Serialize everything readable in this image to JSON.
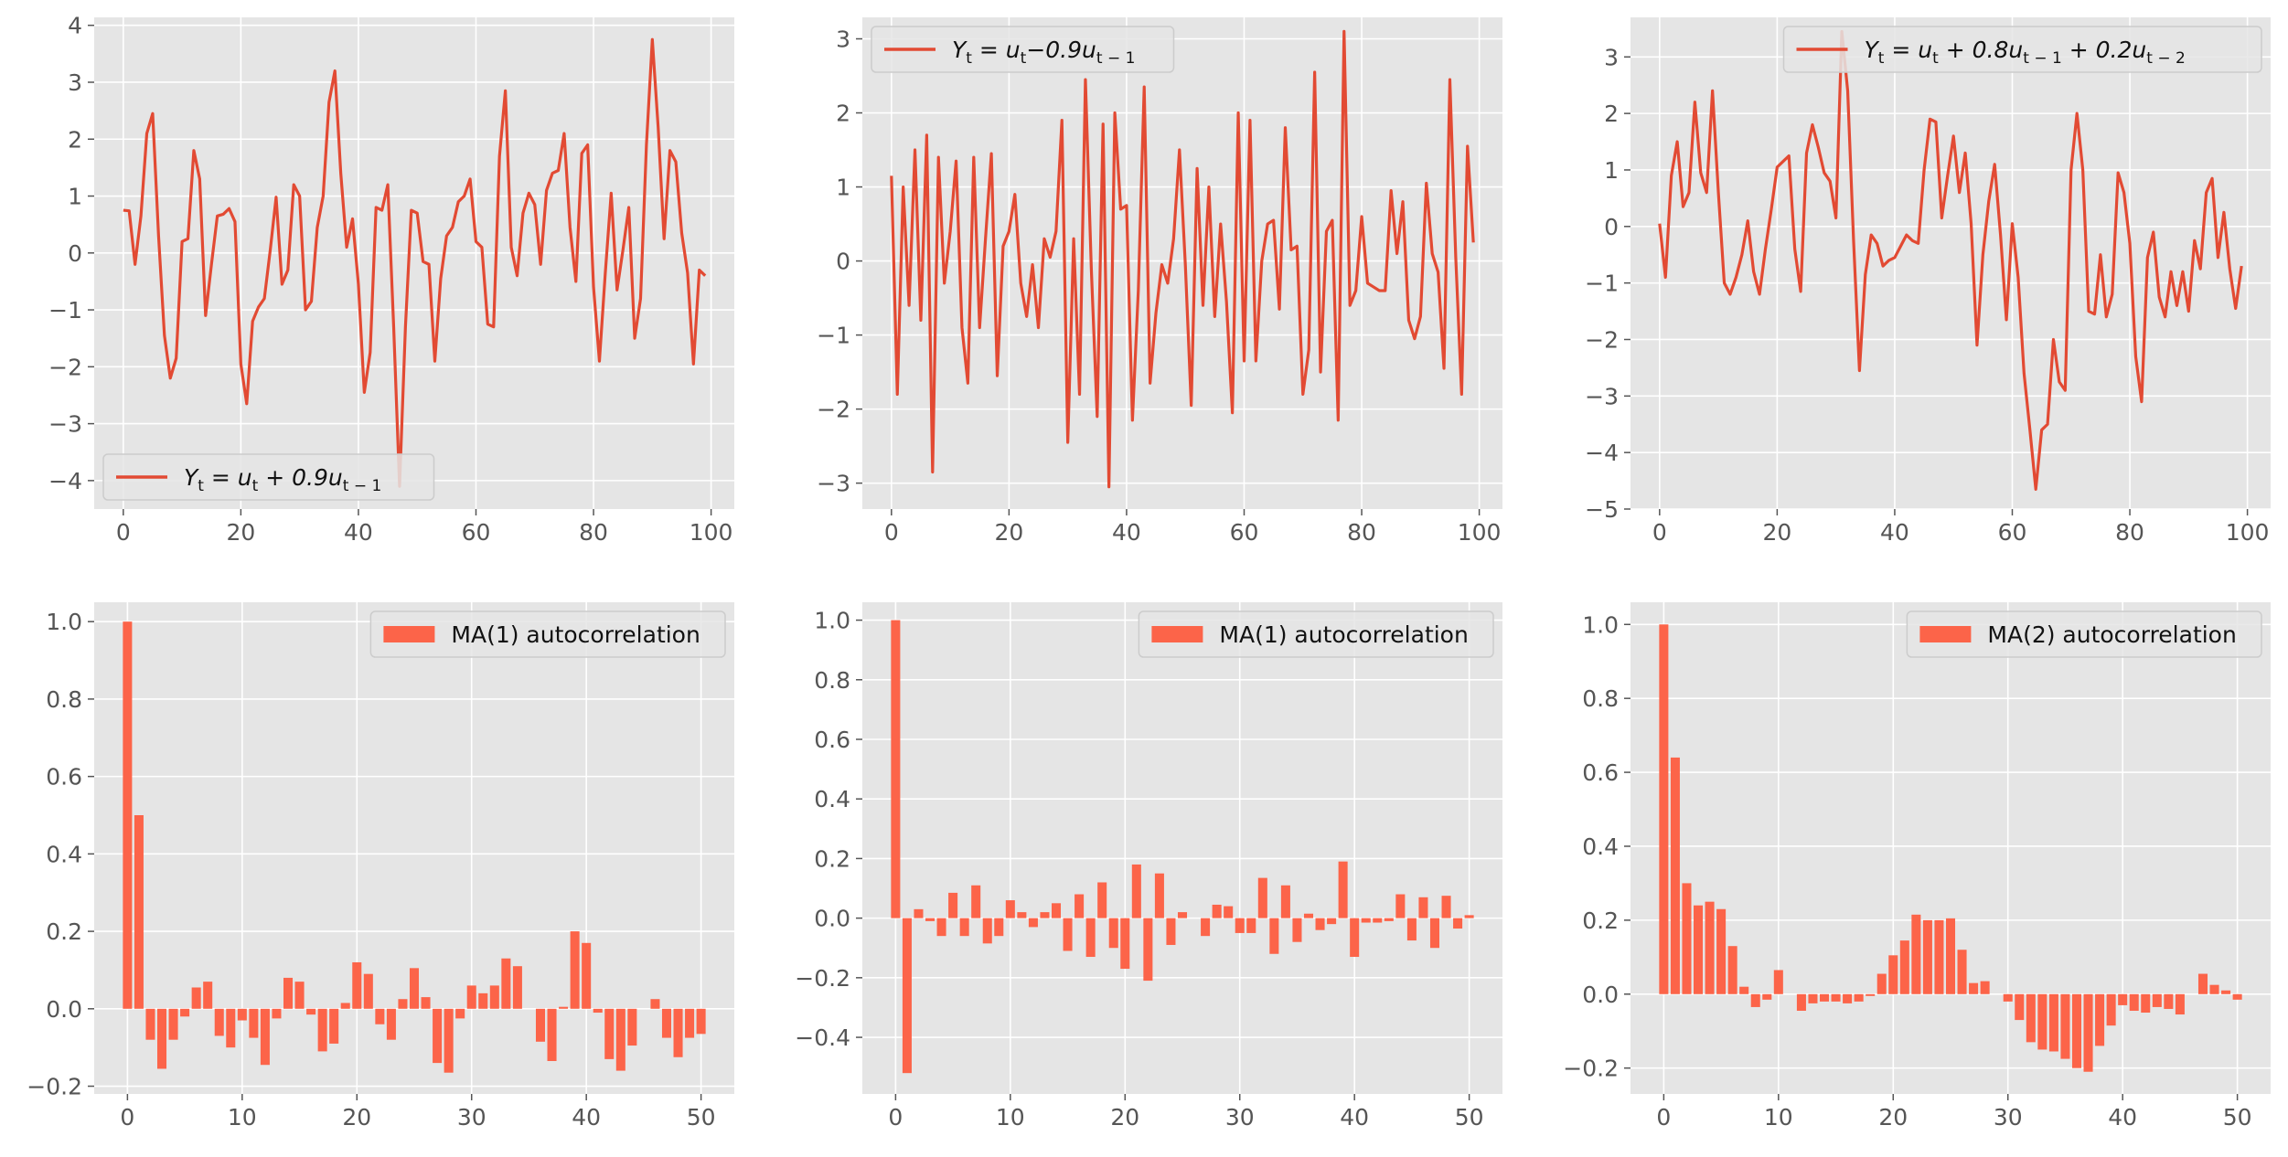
{
  "figure": {
    "background": "#ffffff"
  },
  "style": {
    "axes_bg": "#e5e5e5",
    "grid": "#ffffff",
    "line_color": "#e24a33",
    "bar_color": "#fc6449",
    "tick_color": "#555555"
  },
  "chart_data": [
    {
      "id": "ma1_pos_series",
      "type": "line",
      "legend": [
        {
          "kind": "math",
          "parts": [
            [
              "Y",
              ""
            ],
            [
              "t",
              "sub"
            ],
            [
              " = u",
              ""
            ],
            [
              "t",
              "sub"
            ],
            [
              " + 0.9u",
              ""
            ],
            [
              "t − 1",
              "sub"
            ]
          ]
        }
      ],
      "legend_loc": "lower-left",
      "grid": true,
      "xlim": [
        -4.95,
        103.95
      ],
      "ylim": [
        -4.5,
        4.14
      ],
      "xticks": [
        0,
        20,
        40,
        60,
        80,
        100
      ],
      "xtick_labels": [
        "0",
        "20",
        "40",
        "60",
        "80",
        "100"
      ],
      "yticks": [
        -4,
        -3,
        -2,
        -1,
        0,
        1,
        2,
        3,
        4
      ],
      "ytick_labels": [
        "−4",
        "−3",
        "−2",
        "−1",
        "0",
        "1",
        "2",
        "3",
        "4"
      ],
      "series": [
        {
          "y": [
            0.75,
            0.74,
            -0.2,
            0.65,
            2.1,
            2.45,
            0.3,
            -1.45,
            -2.2,
            -1.85,
            0.2,
            0.25,
            1.8,
            1.3,
            -1.1,
            -0.2,
            0.65,
            0.68,
            0.78,
            0.55,
            -1.95,
            -2.65,
            -1.2,
            -0.95,
            -0.8,
            0.05,
            0.98,
            -0.55,
            -0.3,
            1.2,
            1.0,
            -1.0,
            -0.85,
            0.45,
            1.0,
            2.65,
            3.2,
            1.4,
            0.1,
            0.6,
            -0.55,
            -2.45,
            -1.75,
            0.8,
            0.75,
            1.2,
            -1.3,
            -4.1,
            -1.3,
            0.75,
            0.7,
            -0.15,
            -0.2,
            -1.9,
            -0.45,
            0.3,
            0.45,
            0.9,
            1.0,
            1.3,
            0.2,
            0.1,
            -1.25,
            -1.3,
            1.7,
            2.85,
            0.1,
            -0.4,
            0.7,
            1.05,
            0.85,
            -0.2,
            1.1,
            1.4,
            1.45,
            2.1,
            0.45,
            -0.5,
            1.75,
            1.9,
            -0.6,
            -1.9,
            -0.35,
            1.05,
            -0.65,
            0.05,
            0.8,
            -1.5,
            -0.8,
            1.9,
            3.75,
            2.2,
            0.25,
            1.8,
            1.6,
            0.35,
            -0.35,
            -1.95,
            -0.3,
            -0.4
          ]
        }
      ]
    },
    {
      "id": "ma1_neg_series",
      "type": "line",
      "legend": [
        {
          "kind": "math",
          "parts": [
            [
              "Y",
              ""
            ],
            [
              "t",
              "sub"
            ],
            [
              " = u",
              ""
            ],
            [
              "t",
              "sub"
            ],
            [
              "−0.9u",
              ""
            ],
            [
              "t − 1",
              "sub"
            ]
          ]
        }
      ],
      "legend_loc": "upper-left",
      "grid": true,
      "xlim": [
        -4.95,
        103.95
      ],
      "ylim": [
        -3.35,
        3.29
      ],
      "xticks": [
        0,
        20,
        40,
        60,
        80,
        100
      ],
      "xtick_labels": [
        "0",
        "20",
        "40",
        "60",
        "80",
        "100"
      ],
      "yticks": [
        -3,
        -2,
        -1,
        0,
        1,
        2,
        3
      ],
      "ytick_labels": [
        "−3",
        "−2",
        "−1",
        "0",
        "1",
        "2",
        "3"
      ],
      "series": [
        {
          "y": [
            1.15,
            -1.8,
            1.0,
            -0.6,
            1.5,
            -0.8,
            1.7,
            -2.85,
            1.4,
            -0.3,
            0.4,
            1.35,
            -0.9,
            -1.65,
            1.4,
            -0.9,
            0.3,
            1.45,
            -1.55,
            0.2,
            0.4,
            0.9,
            -0.3,
            -0.75,
            -0.05,
            -0.9,
            0.3,
            0.05,
            0.4,
            1.9,
            -2.45,
            0.3,
            -1.8,
            2.45,
            -0.1,
            -2.1,
            1.85,
            -3.05,
            2.0,
            0.7,
            0.75,
            -2.15,
            -0.4,
            2.35,
            -1.65,
            -0.7,
            -0.05,
            -0.3,
            0.3,
            1.5,
            -0.05,
            -1.95,
            1.25,
            -0.6,
            1.0,
            -0.75,
            0.5,
            -0.55,
            -2.05,
            2.0,
            -1.35,
            1.9,
            -1.35,
            0.0,
            0.5,
            0.55,
            -0.65,
            1.8,
            0.15,
            0.2,
            -1.8,
            -1.2,
            2.55,
            -1.5,
            0.4,
            0.55,
            -2.15,
            3.1,
            -0.6,
            -0.4,
            0.6,
            -0.3,
            -0.35,
            -0.4,
            -0.4,
            0.95,
            0.1,
            0.8,
            -0.8,
            -1.05,
            -0.75,
            1.05,
            0.1,
            -0.15,
            -1.45,
            2.45,
            0.05,
            -1.8,
            1.55,
            0.25
          ]
        }
      ]
    },
    {
      "id": "ma2_series",
      "type": "line",
      "legend": [
        {
          "kind": "math",
          "parts": [
            [
              "Y",
              ""
            ],
            [
              "t",
              "sub"
            ],
            [
              " = u",
              ""
            ],
            [
              "t",
              "sub"
            ],
            [
              " + 0.8u",
              ""
            ],
            [
              "t − 1",
              "sub"
            ],
            [
              " + 0.2u",
              ""
            ],
            [
              "t − 2",
              "sub"
            ]
          ]
        }
      ],
      "legend_loc": "upper-right",
      "grid": true,
      "xlim": [
        -4.95,
        103.95
      ],
      "ylim": [
        -5.0,
        3.7
      ],
      "xticks": [
        0,
        20,
        40,
        60,
        80,
        100
      ],
      "xtick_labels": [
        "0",
        "20",
        "40",
        "60",
        "80",
        "100"
      ],
      "yticks": [
        -5,
        -4,
        -3,
        -2,
        -1,
        0,
        1,
        2,
        3
      ],
      "ytick_labels": [
        "−5",
        "−4",
        "−3",
        "−2",
        "−1",
        "0",
        "1",
        "2",
        "3"
      ],
      "series": [
        {
          "y": [
            0.05,
            -0.9,
            0.9,
            1.5,
            0.35,
            0.6,
            2.2,
            0.95,
            0.6,
            2.4,
            0.6,
            -1.0,
            -1.2,
            -0.9,
            -0.5,
            0.1,
            -0.8,
            -1.2,
            -0.4,
            0.3,
            1.05,
            1.15,
            1.25,
            -0.4,
            -1.15,
            1.3,
            1.8,
            1.4,
            0.95,
            0.8,
            0.15,
            3.45,
            2.4,
            -0.25,
            -2.55,
            -0.85,
            -0.15,
            -0.3,
            -0.7,
            -0.6,
            -0.55,
            -0.35,
            -0.15,
            -0.25,
            -0.3,
            1.0,
            1.9,
            1.85,
            0.15,
            0.9,
            1.6,
            0.6,
            1.3,
            0.05,
            -2.1,
            -0.5,
            0.45,
            1.1,
            -0.15,
            -1.65,
            0.05,
            -0.9,
            -2.6,
            -3.6,
            -4.65,
            -3.6,
            -3.5,
            -2.0,
            -2.75,
            -2.9,
            1.0,
            2.0,
            1.0,
            -1.5,
            -1.55,
            -0.5,
            -1.6,
            -1.2,
            0.95,
            0.6,
            -0.3,
            -2.3,
            -3.1,
            -0.55,
            -0.1,
            -1.25,
            -1.6,
            -0.8,
            -1.4,
            -0.8,
            -1.5,
            -0.25,
            -0.75,
            0.6,
            0.85,
            -0.55,
            0.25,
            -0.75,
            -1.45,
            -0.7
          ]
        }
      ]
    },
    {
      "id": "ma1_pos_acf",
      "type": "bar",
      "legend": [
        {
          "kind": "text",
          "text": "MA(1) autocorrelation"
        }
      ],
      "legend_loc": "upper-right",
      "grid": true,
      "xlim": [
        -2.9,
        52.9
      ],
      "ylim": [
        -0.22,
        1.05
      ],
      "xticks": [
        0,
        10,
        20,
        30,
        40,
        50
      ],
      "xtick_labels": [
        "0",
        "10",
        "20",
        "30",
        "40",
        "50"
      ],
      "yticks": [
        -0.2,
        0.0,
        0.2,
        0.4,
        0.6,
        0.8,
        1.0
      ],
      "ytick_labels": [
        "−0.2",
        "0.0",
        "0.2",
        "0.4",
        "0.6",
        "0.8",
        "1.0"
      ],
      "values": [
        1.0,
        0.5,
        -0.08,
        -0.155,
        -0.08,
        -0.02,
        0.055,
        0.07,
        -0.07,
        -0.1,
        -0.03,
        -0.075,
        -0.145,
        -0.025,
        0.08,
        0.07,
        -0.015,
        -0.11,
        -0.09,
        0.015,
        0.12,
        0.09,
        -0.04,
        -0.08,
        0.025,
        0.105,
        0.03,
        -0.14,
        -0.165,
        -0.025,
        0.06,
        0.04,
        0.06,
        0.13,
        0.11,
        0.0,
        -0.085,
        -0.135,
        0.005,
        0.2,
        0.17,
        -0.01,
        -0.13,
        -0.16,
        -0.095,
        0.0,
        0.025,
        -0.075,
        -0.125,
        -0.075,
        -0.065
      ]
    },
    {
      "id": "ma1_neg_acf",
      "type": "bar",
      "legend": [
        {
          "kind": "text",
          "text": "MA(1) autocorrelation"
        }
      ],
      "legend_loc": "upper-right",
      "grid": true,
      "xlim": [
        -2.9,
        52.9
      ],
      "ylim": [
        -0.59,
        1.06
      ],
      "xticks": [
        0,
        10,
        20,
        30,
        40,
        50
      ],
      "xtick_labels": [
        "0",
        "10",
        "20",
        "30",
        "40",
        "50"
      ],
      "yticks": [
        -0.4,
        -0.2,
        0.0,
        0.2,
        0.4,
        0.6,
        0.8,
        1.0
      ],
      "ytick_labels": [
        "−0.4",
        "−0.2",
        "0.0",
        "0.2",
        "0.4",
        "0.6",
        "0.8",
        "1.0"
      ],
      "values": [
        1.0,
        -0.52,
        0.03,
        -0.01,
        -0.06,
        0.085,
        -0.06,
        0.11,
        -0.085,
        -0.06,
        0.06,
        0.02,
        -0.03,
        0.02,
        0.05,
        -0.11,
        0.08,
        -0.13,
        0.12,
        -0.1,
        -0.17,
        0.18,
        -0.21,
        0.15,
        -0.09,
        0.02,
        0.0,
        -0.06,
        0.045,
        0.04,
        -0.05,
        -0.05,
        0.135,
        -0.12,
        0.11,
        -0.08,
        0.015,
        -0.04,
        -0.02,
        0.19,
        -0.13,
        -0.015,
        -0.015,
        -0.01,
        0.08,
        -0.075,
        0.07,
        -0.1,
        0.075,
        -0.035,
        0.01
      ]
    },
    {
      "id": "ma2_acf",
      "type": "bar",
      "legend": [
        {
          "kind": "text",
          "text": "MA(2) autocorrelation"
        }
      ],
      "legend_loc": "upper-right",
      "grid": true,
      "xlim": [
        -2.9,
        52.9
      ],
      "ylim": [
        -0.27,
        1.06
      ],
      "xticks": [
        0,
        10,
        20,
        30,
        40,
        50
      ],
      "xtick_labels": [
        "0",
        "10",
        "20",
        "30",
        "40",
        "50"
      ],
      "yticks": [
        -0.2,
        0.0,
        0.2,
        0.4,
        0.6,
        0.8,
        1.0
      ],
      "ytick_labels": [
        "−0.2",
        "0.0",
        "0.2",
        "0.4",
        "0.6",
        "0.8",
        "1.0"
      ],
      "values": [
        1.0,
        0.64,
        0.3,
        0.24,
        0.25,
        0.23,
        0.13,
        0.02,
        -0.035,
        -0.015,
        0.065,
        0.0,
        -0.045,
        -0.025,
        -0.02,
        -0.02,
        -0.025,
        -0.02,
        -0.005,
        0.055,
        0.105,
        0.145,
        0.215,
        0.2,
        0.2,
        0.205,
        0.12,
        0.03,
        0.035,
        0.0,
        -0.02,
        -0.07,
        -0.13,
        -0.15,
        -0.155,
        -0.175,
        -0.2,
        -0.21,
        -0.14,
        -0.085,
        -0.03,
        -0.045,
        -0.05,
        -0.035,
        -0.04,
        -0.055,
        0.0,
        0.055,
        0.025,
        0.01,
        -0.015
      ]
    }
  ]
}
